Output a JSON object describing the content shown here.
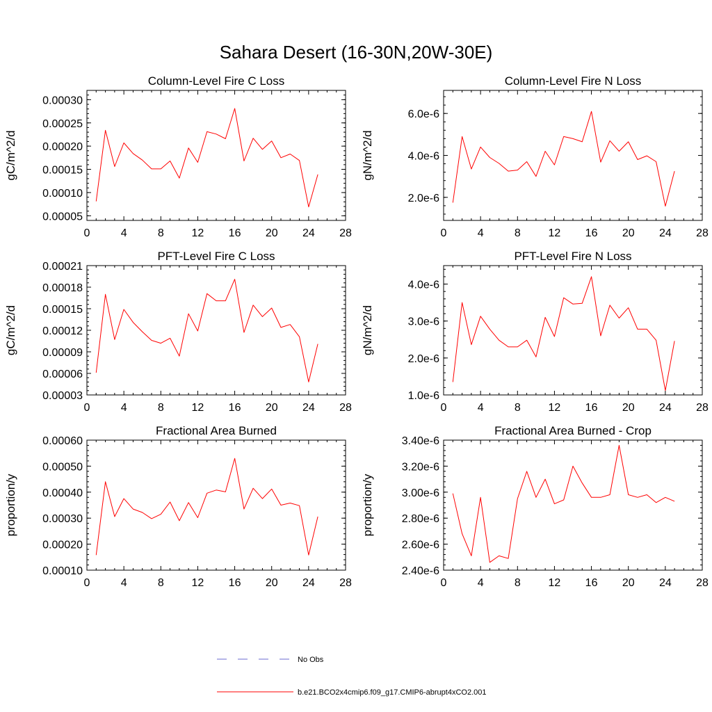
{
  "figure": {
    "title": "Sahara Desert (16-30N,20W-30E)"
  },
  "legend": {
    "items": [
      {
        "label": "No Obs",
        "color": "#6a6ad0",
        "style": "dashed"
      },
      {
        "label": "b.e21.BCO2x4cmip6.f09_g17.CMIP6-abrupt4xCO2.001",
        "color": "#ff0000",
        "style": "solid"
      }
    ]
  },
  "chart_data": [
    {
      "type": "line",
      "title": "Column-Level Fire C Loss",
      "ylabel": "gC/m^2/d",
      "xlim": [
        0,
        28
      ],
      "ylim": [
        4e-05,
        0.00032
      ],
      "xticks": [
        0,
        4,
        8,
        12,
        16,
        20,
        24,
        28
      ],
      "xtick_labels": [
        "0",
        "4",
        "8",
        "12",
        "16",
        "20",
        "24",
        "28"
      ],
      "yticks": [
        5e-05,
        0.0001,
        0.00015,
        0.0002,
        0.00025,
        0.0003
      ],
      "ytick_labels": [
        "0.00005",
        "0.00010",
        "0.00015",
        "0.00020",
        "0.00025",
        "0.00030"
      ],
      "series": [
        {
          "name": "b.e21.BCO2x4cmip6.f09_g17.CMIP6-abrupt4xCO2.001",
          "color": "#ff0000",
          "x": [
            1,
            2,
            3,
            4,
            5,
            6,
            7,
            8,
            9,
            10,
            11,
            12,
            13,
            14,
            15,
            16,
            17,
            18,
            19,
            20,
            21,
            22,
            23,
            24,
            25
          ],
          "values": [
            8.1e-05,
            0.000234,
            0.000156,
            0.000207,
            0.000184,
            0.00017,
            0.000151,
            0.000151,
            0.000168,
            0.000131,
            0.000196,
            0.000165,
            0.000231,
            0.000226,
            0.000216,
            0.000281,
            0.000168,
            0.000217,
            0.000193,
            0.000211,
            0.000175,
            0.000183,
            0.000169,
            6.9e-05,
            0.000139
          ]
        }
      ]
    },
    {
      "type": "line",
      "title": "Column-Level Fire N Loss",
      "ylabel": "gN/m^2/d",
      "xlim": [
        0,
        28
      ],
      "ylim": [
        9e-07,
        7.1e-06
      ],
      "xticks": [
        0,
        4,
        8,
        12,
        16,
        20,
        24,
        28
      ],
      "xtick_labels": [
        "0",
        "4",
        "8",
        "12",
        "16",
        "20",
        "24",
        "28"
      ],
      "yticks": [
        2e-06,
        4e-06,
        6e-06
      ],
      "ytick_labels": [
        "2.0e-6",
        "4.0e-6",
        "6.0e-6"
      ],
      "series": [
        {
          "name": "b.e21.BCO2x4cmip6.f09_g17.CMIP6-abrupt4xCO2.001",
          "color": "#ff0000",
          "x": [
            1,
            2,
            3,
            4,
            5,
            6,
            7,
            8,
            9,
            10,
            11,
            12,
            13,
            14,
            15,
            16,
            17,
            18,
            19,
            20,
            21,
            22,
            23,
            24,
            25
          ],
          "values": [
            1.75e-06,
            4.9e-06,
            3.35e-06,
            4.4e-06,
            3.9e-06,
            3.62e-06,
            3.25e-06,
            3.3e-06,
            3.7e-06,
            3e-06,
            4.2e-06,
            3.55e-06,
            4.9e-06,
            4.8e-06,
            4.65e-06,
            6.1e-06,
            3.68e-06,
            4.7e-06,
            4.2e-06,
            4.65e-06,
            3.8e-06,
            3.98e-06,
            3.7e-06,
            1.58e-06,
            3.25e-06
          ]
        }
      ]
    },
    {
      "type": "line",
      "title": "PFT-Level Fire C Loss",
      "ylabel": "gC/m^2/d",
      "xlim": [
        0,
        28
      ],
      "ylim": [
        3e-05,
        0.00021
      ],
      "xticks": [
        0,
        4,
        8,
        12,
        16,
        20,
        24,
        28
      ],
      "xtick_labels": [
        "0",
        "4",
        "8",
        "12",
        "16",
        "20",
        "24",
        "28"
      ],
      "yticks": [
        3e-05,
        6e-05,
        9e-05,
        0.00012,
        0.00015,
        0.00018,
        0.00021
      ],
      "ytick_labels": [
        "0.00003",
        "0.00006",
        "0.00009",
        "0.00012",
        "0.00015",
        "0.00018",
        "0.00021"
      ],
      "series": [
        {
          "name": "b.e21.BCO2x4cmip6.f09_g17.CMIP6-abrupt4xCO2.001",
          "color": "#ff0000",
          "x": [
            1,
            2,
            3,
            4,
            5,
            6,
            7,
            8,
            9,
            10,
            11,
            12,
            13,
            14,
            15,
            16,
            17,
            18,
            19,
            20,
            21,
            22,
            23,
            24,
            25
          ],
          "values": [
            6.1e-05,
            0.00017,
            0.000107,
            0.000149,
            0.000131,
            0.000118,
            0.000106,
            0.000102,
            0.000109,
            8.4e-05,
            0.000143,
            0.000119,
            0.000171,
            0.000161,
            0.000161,
            0.000191,
            0.000117,
            0.000155,
            0.000139,
            0.000151,
            0.000124,
            0.000128,
            0.000111,
            4.8e-05,
            0.000101
          ]
        }
      ]
    },
    {
      "type": "line",
      "title": "PFT-Level Fire N Loss",
      "ylabel": "gN/m^2/d",
      "xlim": [
        0,
        28
      ],
      "ylim": [
        1e-06,
        4.5e-06
      ],
      "xticks": [
        0,
        4,
        8,
        12,
        16,
        20,
        24,
        28
      ],
      "xtick_labels": [
        "0",
        "4",
        "8",
        "12",
        "16",
        "20",
        "24",
        "28"
      ],
      "yticks": [
        1e-06,
        2e-06,
        3e-06,
        4e-06
      ],
      "ytick_labels": [
        "1.0e-6",
        "2.0e-6",
        "3.0e-6",
        "4.0e-6"
      ],
      "series": [
        {
          "name": "b.e21.BCO2x4cmip6.f09_g17.CMIP6-abrupt4xCO2.001",
          "color": "#ff0000",
          "x": [
            1,
            2,
            3,
            4,
            5,
            6,
            7,
            8,
            9,
            10,
            11,
            12,
            13,
            14,
            15,
            16,
            17,
            18,
            19,
            20,
            21,
            22,
            23,
            24,
            25
          ],
          "values": [
            1.35e-06,
            3.5e-06,
            2.36e-06,
            3.13e-06,
            2.78e-06,
            2.48e-06,
            2.3e-06,
            2.3e-06,
            2.48e-06,
            2.03e-06,
            3.1e-06,
            2.58e-06,
            3.63e-06,
            3.46e-06,
            3.48e-06,
            4.2e-06,
            2.6e-06,
            3.43e-06,
            3.08e-06,
            3.36e-06,
            2.78e-06,
            2.78e-06,
            2.48e-06,
            1.12e-06,
            2.46e-06
          ]
        }
      ]
    },
    {
      "type": "line",
      "title": "Fractional Area Burned",
      "ylabel": "proportion/y",
      "xlim": [
        0,
        28
      ],
      "ylim": [
        0.0001,
        0.0006
      ],
      "xticks": [
        0,
        4,
        8,
        12,
        16,
        20,
        24,
        28
      ],
      "xtick_labels": [
        "0",
        "4",
        "8",
        "12",
        "16",
        "20",
        "24",
        "28"
      ],
      "yticks": [
        0.0001,
        0.0002,
        0.0003,
        0.0004,
        0.0005,
        0.0006
      ],
      "ytick_labels": [
        "0.00010",
        "0.00020",
        "0.00030",
        "0.00040",
        "0.00050",
        "0.00060"
      ],
      "series": [
        {
          "name": "b.e21.BCO2x4cmip6.f09_g17.CMIP6-abrupt4xCO2.001",
          "color": "#ff0000",
          "x": [
            1,
            2,
            3,
            4,
            5,
            6,
            7,
            8,
            9,
            10,
            11,
            12,
            13,
            14,
            15,
            16,
            17,
            18,
            19,
            20,
            21,
            22,
            23,
            24,
            25
          ],
          "values": [
            0.000158,
            0.00044,
            0.000306,
            0.000375,
            0.000335,
            0.000322,
            0.000298,
            0.000315,
            0.000362,
            0.00029,
            0.00036,
            0.000302,
            0.000396,
            0.000408,
            0.000401,
            0.00053,
            0.000335,
            0.000415,
            0.000375,
            0.000412,
            0.00035,
            0.000358,
            0.000348,
            0.000158,
            0.000306
          ]
        }
      ]
    },
    {
      "type": "line",
      "title": "Fractional Area Burned - Crop",
      "ylabel": "proportion/y",
      "xlim": [
        0,
        28
      ],
      "ylim": [
        2.4e-06,
        3.4e-06
      ],
      "xticks": [
        0,
        4,
        8,
        12,
        16,
        20,
        24,
        28
      ],
      "xtick_labels": [
        "0",
        "4",
        "8",
        "12",
        "16",
        "20",
        "24",
        "28"
      ],
      "yticks": [
        2.4e-06,
        2.6e-06,
        2.8e-06,
        3e-06,
        3.2e-06,
        3.4e-06
      ],
      "ytick_labels": [
        "2.40e-6",
        "2.60e-6",
        "2.80e-6",
        "3.00e-6",
        "3.20e-6",
        "3.40e-6"
      ],
      "series": [
        {
          "name": "b.e21.BCO2x4cmip6.f09_g17.CMIP6-abrupt4xCO2.001",
          "color": "#ff0000",
          "x": [
            1,
            2,
            3,
            4,
            5,
            6,
            7,
            8,
            9,
            10,
            11,
            12,
            13,
            14,
            15,
            16,
            17,
            18,
            19,
            20,
            21,
            22,
            23,
            24,
            25
          ],
          "values": [
            2.99e-06,
            2.68e-06,
            2.51e-06,
            2.96e-06,
            2.46e-06,
            2.51e-06,
            2.49e-06,
            2.95e-06,
            3.16e-06,
            2.96e-06,
            3.1e-06,
            2.91e-06,
            2.94e-06,
            3.2e-06,
            3.07e-06,
            2.96e-06,
            2.96e-06,
            2.98e-06,
            3.36e-06,
            2.98e-06,
            2.96e-06,
            2.98e-06,
            2.92e-06,
            2.96e-06,
            2.93e-06
          ]
        }
      ]
    }
  ]
}
